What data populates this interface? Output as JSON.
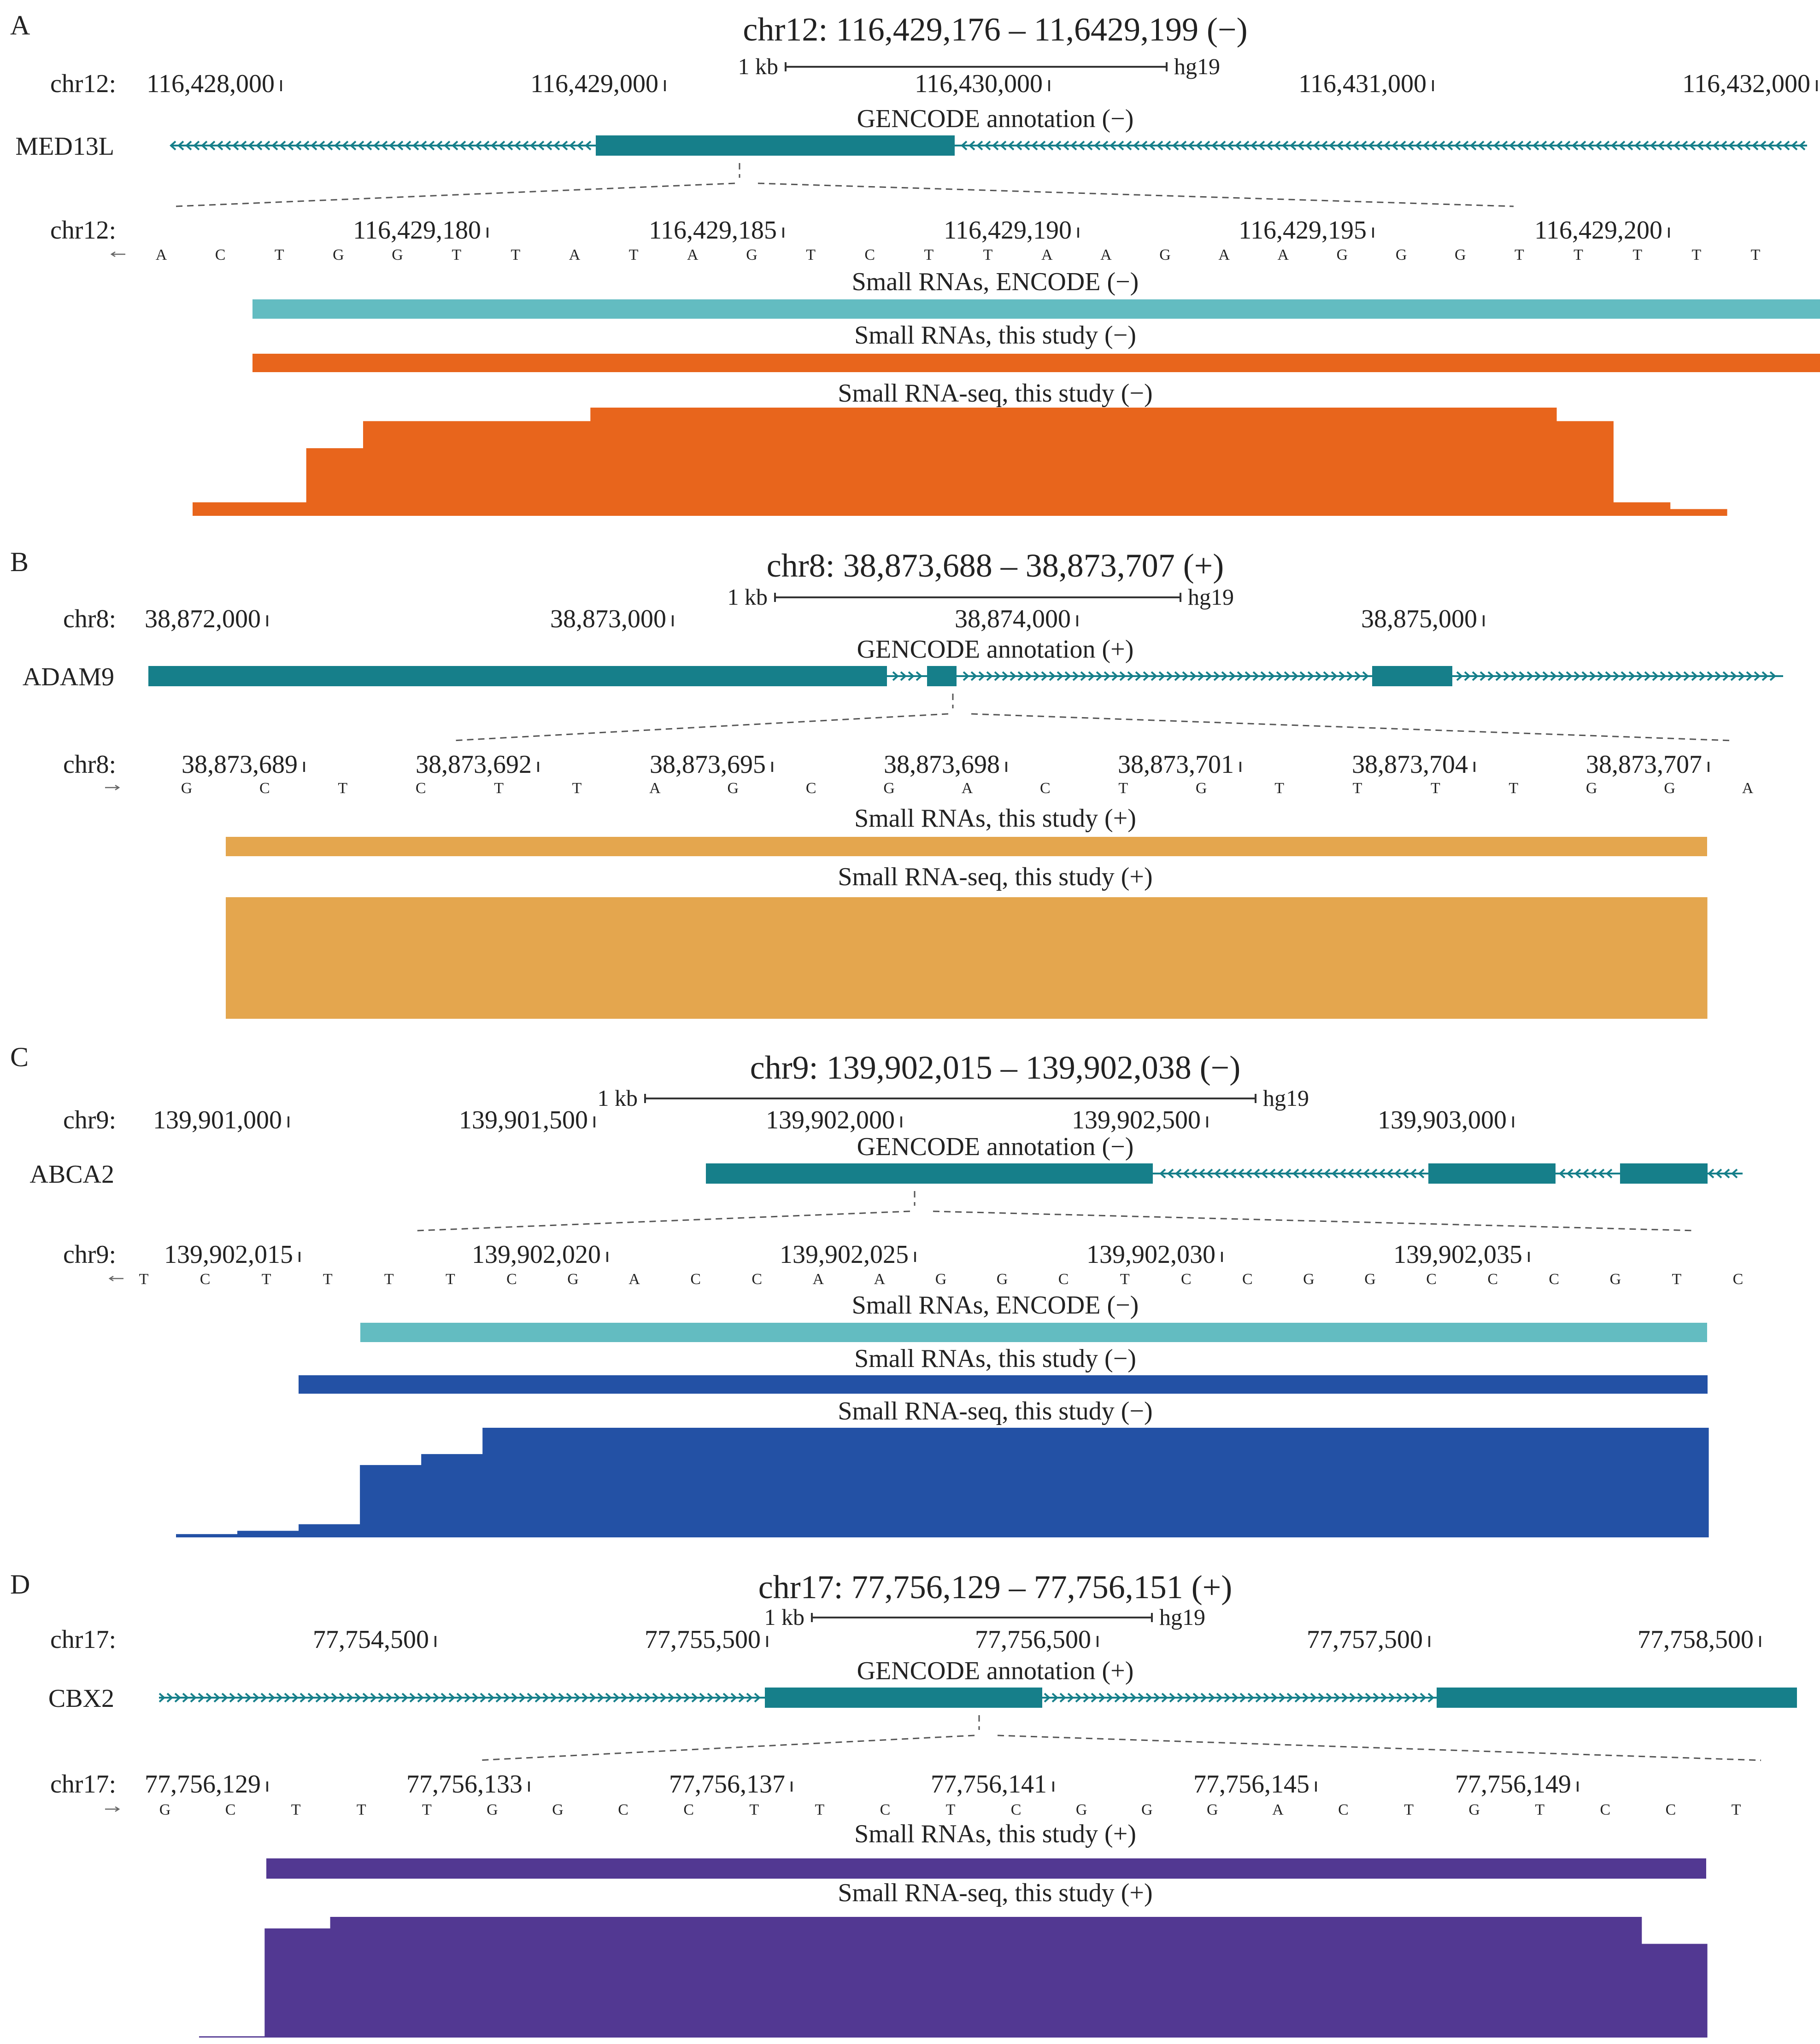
{
  "colors": {
    "gene": "#167f8a",
    "encode": "#63bcc1",
    "A": "#e8651c",
    "B": "#e4a64e",
    "C": "#2351a5",
    "D": "#523892"
  },
  "panels": [
    {
      "id": "A",
      "label": "A",
      "title": "chr12: 116,429,176 – 11,6429,199 (−)",
      "strand": "-",
      "scale": {
        "label": "1 kb",
        "assembly": "hg19"
      },
      "ruler": {
        "chr": "chr12:",
        "labels": [
          "116,428,000",
          "116,429,000",
          "116,430,000",
          "116,431,000",
          "116,432,000"
        ]
      },
      "gene": {
        "name": "MED13L",
        "annotation": "GENCODE annotation (−)"
      },
      "zoom": {
        "chr": "chr12:",
        "labels": [
          "116,429,180",
          "116,429,185",
          "116,429,190",
          "116,429,195",
          "116,429,200"
        ],
        "bases": [
          "A",
          "C",
          "T",
          "G",
          "G",
          "T",
          "T",
          "A",
          "T",
          "A",
          "G",
          "T",
          "C",
          "T",
          "T",
          "A",
          "A",
          "G",
          "A",
          "A",
          "G",
          "G",
          "G",
          "T",
          "T",
          "T",
          "T",
          "T"
        ]
      },
      "tracks": [
        {
          "title": "Small RNAs, ENCODE (−)"
        },
        {
          "title": "Small RNAs, this study (−)"
        },
        {
          "title": "Small RNA-seq, this study (−)",
          "coverage": [
            1,
            1,
            5,
            7,
            7,
            7,
            7,
            8,
            8,
            8,
            8,
            8,
            8,
            8,
            8,
            8,
            8,
            8,
            8,
            8,
            8,
            8,
            8,
            8,
            7,
            1,
            0.5
          ]
        }
      ]
    },
    {
      "id": "B",
      "label": "B",
      "title": "chr8: 38,873,688 – 38,873,707 (+)",
      "strand": "+",
      "scale": {
        "label": "1 kb",
        "assembly": "hg19"
      },
      "ruler": {
        "chr": "chr8:",
        "labels": [
          "38,872,000",
          "38,873,000",
          "38,874,000",
          "38,875,000"
        ]
      },
      "gene": {
        "name": "ADAM9",
        "annotation": "GENCODE annotation (+)"
      },
      "zoom": {
        "chr": "chr8:",
        "labels": [
          "38,873,689",
          "38,873,692",
          "38,873,695",
          "38,873,698",
          "38,873,701",
          "38,873,704",
          "38,873,707"
        ],
        "bases": [
          "G",
          "C",
          "T",
          "C",
          "T",
          "T",
          "A",
          "G",
          "C",
          "G",
          "A",
          "C",
          "T",
          "G",
          "T",
          "T",
          "T",
          "T",
          "G",
          "G",
          "A"
        ]
      },
      "tracks": [
        {
          "title": "Small RNAs, this study (+)"
        },
        {
          "title": "Small RNA-seq, this study (+)",
          "coverage": [
            1,
            1,
            1,
            1,
            1,
            1,
            1,
            1,
            1,
            1,
            1,
            1,
            1,
            1,
            1,
            1,
            1,
            1,
            1,
            1
          ]
        }
      ]
    },
    {
      "id": "C",
      "label": "C",
      "title": "chr9: 139,902,015 – 139,902,038 (−)",
      "strand": "-",
      "scale": {
        "label": "1 kb",
        "assembly": "hg19"
      },
      "ruler": {
        "chr": "chr9:",
        "labels": [
          "139,901,000",
          "139,901,500",
          "139,902,000",
          "139,902,500",
          "139,903,000"
        ]
      },
      "gene": {
        "name": "ABCA2",
        "annotation": "GENCODE annotation (−)"
      },
      "zoom": {
        "chr": "chr9:",
        "labels": [
          "139,902,015",
          "139,902,020",
          "139,902,025",
          "139,902,030",
          "139,902,035"
        ],
        "bases": [
          "T",
          "C",
          "T",
          "T",
          "T",
          "T",
          "C",
          "G",
          "A",
          "C",
          "C",
          "A",
          "A",
          "G",
          "G",
          "C",
          "T",
          "C",
          "C",
          "G",
          "G",
          "C",
          "C",
          "C",
          "G",
          "T",
          "C"
        ]
      },
      "tracks": [
        {
          "title": "Small RNAs, ENCODE (−)"
        },
        {
          "title": "Small RNAs, this study (−)"
        },
        {
          "title": "Small RNA-seq, this study (−)",
          "coverage": [
            0.3,
            0.6,
            1.2,
            6.6,
            7.6,
            10,
            10,
            10,
            10,
            10,
            10,
            10,
            10,
            10,
            10,
            10,
            10,
            10,
            10,
            10,
            10,
            10,
            10,
            10,
            10
          ]
        }
      ]
    },
    {
      "id": "D",
      "label": "D",
      "title": "chr17: 77,756,129 – 77,756,151 (+)",
      "strand": "+",
      "scale": {
        "label": "1 kb",
        "assembly": "hg19"
      },
      "ruler": {
        "chr": "chr17:",
        "labels": [
          "77,754,500",
          "77,755,500",
          "77,756,500",
          "77,757,500",
          "77,758,500"
        ]
      },
      "gene": {
        "name": "CBX2",
        "annotation": "GENCODE annotation (+)"
      },
      "zoom": {
        "chr": "chr17:",
        "labels": [
          "77,756,129",
          "77,756,133",
          "77,756,137",
          "77,756,141",
          "77,756,145",
          "77,756,149"
        ],
        "bases": [
          "G",
          "C",
          "T",
          "T",
          "T",
          "G",
          "G",
          "C",
          "C",
          "T",
          "T",
          "C",
          "T",
          "C",
          "G",
          "G",
          "G",
          "A",
          "C",
          "T",
          "G",
          "T",
          "C",
          "C",
          "T"
        ]
      },
      "tracks": [
        {
          "title": "Small RNAs, this study (+)"
        },
        {
          "title": "Small RNA-seq, this study (+)",
          "coverage": [
            0.1,
            8.5,
            9.4,
            9.4,
            9.4,
            9.4,
            9.4,
            9.4,
            9.4,
            9.4,
            9.4,
            9.4,
            9.4,
            9.4,
            9.4,
            9.4,
            9.4,
            9.4,
            9.4,
            9.4,
            9.4,
            9.4,
            7.3
          ]
        }
      ]
    }
  ]
}
